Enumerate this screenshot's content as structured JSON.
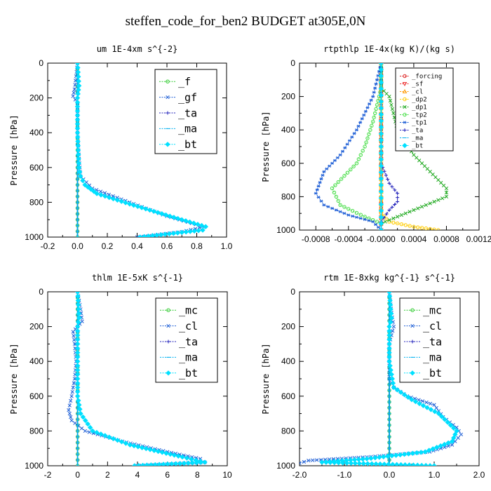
{
  "title": "steffen_code_for_ben2  BUDGET at305E,0N",
  "chart_data": [
    {
      "type": "line",
      "title": "um   1E-4xm s^{-2}",
      "ylabel": "Pressure [hPa]",
      "xlim": [
        -0.2,
        1.0
      ],
      "ylim": [
        1000,
        0
      ],
      "xticks": [
        "-0.2",
        "0.0",
        "0.2",
        "0.4",
        "0.6",
        "0.8",
        "1.0"
      ],
      "xtick_values": [
        -0.2,
        0.0,
        0.2,
        0.4,
        0.6,
        0.8,
        1.0
      ],
      "yticks": [
        "0",
        "200",
        "400",
        "600",
        "800",
        "1000"
      ],
      "ytick_values": [
        0,
        200,
        400,
        600,
        800,
        1000
      ],
      "legend_position": "top-right",
      "series": [
        {
          "name": "_f",
          "color": "#33cc33",
          "marker": "o",
          "x": [
            0,
            0,
            0,
            0,
            0,
            0,
            0,
            0,
            0,
            0,
            0
          ],
          "y": [
            0,
            100,
            200,
            300,
            400,
            500,
            600,
            700,
            800,
            900,
            1000
          ]
        },
        {
          "name": "_gf",
          "color": "#1f5fd6",
          "marker": "x",
          "x": [
            0.0,
            -0.02,
            -0.03,
            0.0,
            0.0,
            0.0,
            0.01,
            0.02,
            0.1,
            0.35,
            0.6,
            0.85,
            0.7,
            0.4
          ],
          "y": [
            0,
            150,
            190,
            230,
            300,
            400,
            550,
            650,
            720,
            800,
            880,
            940,
            970,
            1000
          ]
        },
        {
          "name": "_ta",
          "color": "#2222bb",
          "marker": "+",
          "x": [
            0,
            0,
            0,
            0,
            0,
            0
          ],
          "y": [
            0,
            200,
            400,
            600,
            800,
            1000
          ]
        },
        {
          "name": "_ma",
          "color": "#00b0f0",
          "marker": "-",
          "x": [
            0,
            0,
            0,
            0,
            0,
            0
          ],
          "y": [
            0,
            200,
            400,
            600,
            800,
            1000
          ]
        },
        {
          "name": "_bt",
          "color": "#00e0ff",
          "marker": "d",
          "x": [
            0.0,
            0.01,
            0.0,
            0.0,
            0.01,
            0.02,
            0.05,
            0.13,
            0.35,
            0.62,
            0.86,
            0.84,
            0.42
          ],
          "y": [
            0,
            130,
            200,
            400,
            600,
            650,
            700,
            750,
            810,
            880,
            940,
            960,
            1000
          ]
        }
      ]
    },
    {
      "type": "line",
      "title": "rtpthlp   1E-4x(kg K)/(kg s)",
      "ylabel": "Pressure [hPa]",
      "xlim": [
        -0.001,
        0.0012
      ],
      "ylim": [
        1000,
        0
      ],
      "xticks": [
        "-0.0008",
        "-0.0004",
        "-0.0000",
        "0.0004",
        "0.0008",
        "0.0012"
      ],
      "xtick_values": [
        -0.0008,
        -0.0004,
        0.0,
        0.0004,
        0.0008,
        0.0012
      ],
      "yticks": [
        "0",
        "200",
        "400",
        "600",
        "800",
        "1000"
      ],
      "ytick_values": [
        0,
        200,
        400,
        600,
        800,
        1000
      ],
      "legend_position": "top-right",
      "series": [
        {
          "name": "_forcing",
          "color": "#dd2222",
          "marker": "o",
          "x": [
            0,
            0,
            0,
            0,
            0,
            0,
            0,
            0,
            0,
            0,
            0
          ],
          "y": [
            0,
            100,
            200,
            300,
            400,
            500,
            600,
            700,
            800,
            900,
            1000
          ]
        },
        {
          "name": "_sf",
          "color": "#ee3333",
          "marker": "v",
          "x": [
            0,
            0
          ],
          "y": [
            0,
            1000
          ]
        },
        {
          "name": "_cl",
          "color": "#ff9900",
          "marker": "^",
          "x": [
            0,
            0
          ],
          "y": [
            0,
            1000
          ]
        },
        {
          "name": "_dp2",
          "color": "#ffcc00",
          "marker": "o",
          "x": [
            0,
            0,
            0.0001,
            0.0004,
            0.0007
          ],
          "y": [
            0,
            900,
            950,
            980,
            1000
          ]
        },
        {
          "name": "_dp1",
          "color": "#22aa22",
          "marker": "x",
          "x": [
            0,
            0,
            0.0001,
            0.0002,
            0.0004,
            0.0006,
            0.0008,
            0.0008,
            0.0005,
            0.0002,
            0.0
          ],
          "y": [
            0,
            150,
            200,
            400,
            550,
            650,
            750,
            800,
            860,
            920,
            960
          ]
        },
        {
          "name": "_tp2",
          "color": "#44dd44",
          "marker": "o",
          "x": [
            0,
            0,
            -0.0001,
            -0.0002,
            -0.0003,
            -0.0006,
            -0.0005,
            -0.0002,
            0.0
          ],
          "y": [
            0,
            150,
            350,
            500,
            600,
            750,
            850,
            920,
            960
          ]
        },
        {
          "name": "_tp1",
          "color": "#1f5fd6",
          "marker": "*",
          "x": [
            0,
            -0.0001,
            -0.0003,
            -0.0005,
            -0.0007,
            -0.0008,
            -0.0007,
            -0.0004,
            -0.0001,
            0.0
          ],
          "y": [
            0,
            200,
            400,
            550,
            650,
            780,
            850,
            910,
            950,
            1000
          ]
        },
        {
          "name": "_ta",
          "color": "#2222bb",
          "marker": "+",
          "x": [
            0,
            0,
            0,
            0.0001,
            0.0002,
            0.0002,
            0.0001,
            0.0
          ],
          "y": [
            0,
            300,
            600,
            720,
            780,
            830,
            880,
            950
          ]
        },
        {
          "name": "_ma",
          "color": "#00b0f0",
          "marker": "-",
          "x": [
            0,
            0
          ],
          "y": [
            0,
            1000
          ]
        },
        {
          "name": "_bt",
          "color": "#00e0ff",
          "marker": "d",
          "x": [
            0,
            0
          ],
          "y": [
            0,
            1000
          ]
        }
      ]
    },
    {
      "type": "line",
      "title": "thlm   1E-5xK s^{-1}",
      "ylabel": "Pressure [hPa]",
      "xlim": [
        -2,
        10
      ],
      "ylim": [
        1000,
        0
      ],
      "xticks": [
        "-2",
        "0",
        "2",
        "4",
        "6",
        "8",
        "10"
      ],
      "xtick_values": [
        -2,
        0,
        2,
        4,
        6,
        8,
        10
      ],
      "yticks": [
        "0",
        "200",
        "400",
        "600",
        "800",
        "1000"
      ],
      "ytick_values": [
        0,
        200,
        400,
        600,
        800,
        1000
      ],
      "legend_position": "top-right",
      "series": [
        {
          "name": "_mc",
          "color": "#33cc33",
          "marker": "o",
          "x": [
            0,
            0,
            0,
            0,
            0,
            0,
            0,
            0,
            0,
            0,
            0
          ],
          "y": [
            0,
            100,
            200,
            300,
            400,
            500,
            600,
            700,
            800,
            900,
            1000
          ]
        },
        {
          "name": "_cl",
          "color": "#1f5fd6",
          "marker": "x",
          "x": [
            0.0,
            0.2,
            0.3,
            0.0,
            -0.3,
            -0.2,
            -0.1,
            -0.2,
            -0.4,
            -0.6,
            -0.4,
            0.5,
            3.0,
            6.0,
            8.2,
            8.5,
            4.0
          ],
          "y": [
            0,
            100,
            170,
            200,
            230,
            300,
            400,
            500,
            600,
            680,
            740,
            800,
            860,
            920,
            960,
            980,
            1000
          ]
        },
        {
          "name": "_ta",
          "color": "#2222bb",
          "marker": "+",
          "x": [
            0,
            0,
            0,
            0,
            0,
            0
          ],
          "y": [
            0,
            200,
            400,
            600,
            800,
            1000
          ]
        },
        {
          "name": "_ma",
          "color": "#00b0f0",
          "marker": "-",
          "x": [
            0,
            0,
            0,
            0,
            0,
            0
          ],
          "y": [
            0,
            200,
            400,
            600,
            800,
            1000
          ]
        },
        {
          "name": "_bt",
          "color": "#00e0ff",
          "marker": "d",
          "x": [
            0.0,
            0.1,
            0.0,
            0.0,
            0.0,
            0.2,
            1.0,
            3.5,
            7.0,
            8.5,
            3.8
          ],
          "y": [
            0,
            150,
            200,
            400,
            600,
            700,
            800,
            880,
            950,
            980,
            1000
          ]
        }
      ]
    },
    {
      "type": "line",
      "title": "rtm   1E-8xkg kg^{-1} s^{-1}",
      "ylabel": "Pressure [hPa]",
      "xlim": [
        -2.0,
        2.0
      ],
      "ylim": [
        1000,
        0
      ],
      "xticks": [
        "-2.0",
        "-1.0",
        "0.0",
        "1.0",
        "2.0"
      ],
      "xtick_values": [
        -2.0,
        -1.0,
        0.0,
        1.0,
        2.0
      ],
      "yticks": [
        "0",
        "200",
        "400",
        "600",
        "800",
        "1000"
      ],
      "ytick_values": [
        0,
        200,
        400,
        600,
        800,
        1000
      ],
      "legend_position": "top-right",
      "series": [
        {
          "name": "_mc",
          "color": "#33cc33",
          "marker": "o",
          "x": [
            0,
            0,
            0,
            0,
            0,
            0,
            0,
            0,
            0,
            0,
            0
          ],
          "y": [
            0,
            100,
            200,
            300,
            400,
            500,
            600,
            700,
            800,
            900,
            1000
          ]
        },
        {
          "name": "_cl",
          "color": "#1f5fd6",
          "marker": "x",
          "x": [
            0.0,
            0.05,
            0.1,
            0.0,
            0.0,
            0.0,
            0.1,
            0.4,
            1.0,
            1.2,
            1.5,
            1.6,
            1.4,
            0.9,
            -0.5,
            -1.8,
            -2.0
          ],
          "y": [
            0,
            120,
            200,
            300,
            400,
            500,
            550,
            600,
            650,
            720,
            780,
            820,
            880,
            920,
            950,
            970,
            985
          ]
        },
        {
          "name": "_ta",
          "color": "#2222bb",
          "marker": "+",
          "x": [
            0,
            0,
            0,
            0,
            0,
            0
          ],
          "y": [
            0,
            200,
            400,
            600,
            800,
            1000
          ]
        },
        {
          "name": "_ma",
          "color": "#00b0f0",
          "marker": "-",
          "x": [
            0,
            0,
            0,
            0,
            0,
            0
          ],
          "y": [
            0,
            200,
            400,
            600,
            800,
            1000
          ]
        },
        {
          "name": "_bt",
          "color": "#00e0ff",
          "marker": "d",
          "x": [
            0.0,
            0.05,
            0.0,
            0.0,
            0.1,
            0.5,
            1.1,
            1.5,
            1.4,
            0.8,
            -0.5,
            -1.5,
            1.0
          ],
          "y": [
            0,
            150,
            200,
            400,
            550,
            620,
            700,
            800,
            860,
            920,
            960,
            980,
            1000
          ]
        }
      ]
    }
  ]
}
